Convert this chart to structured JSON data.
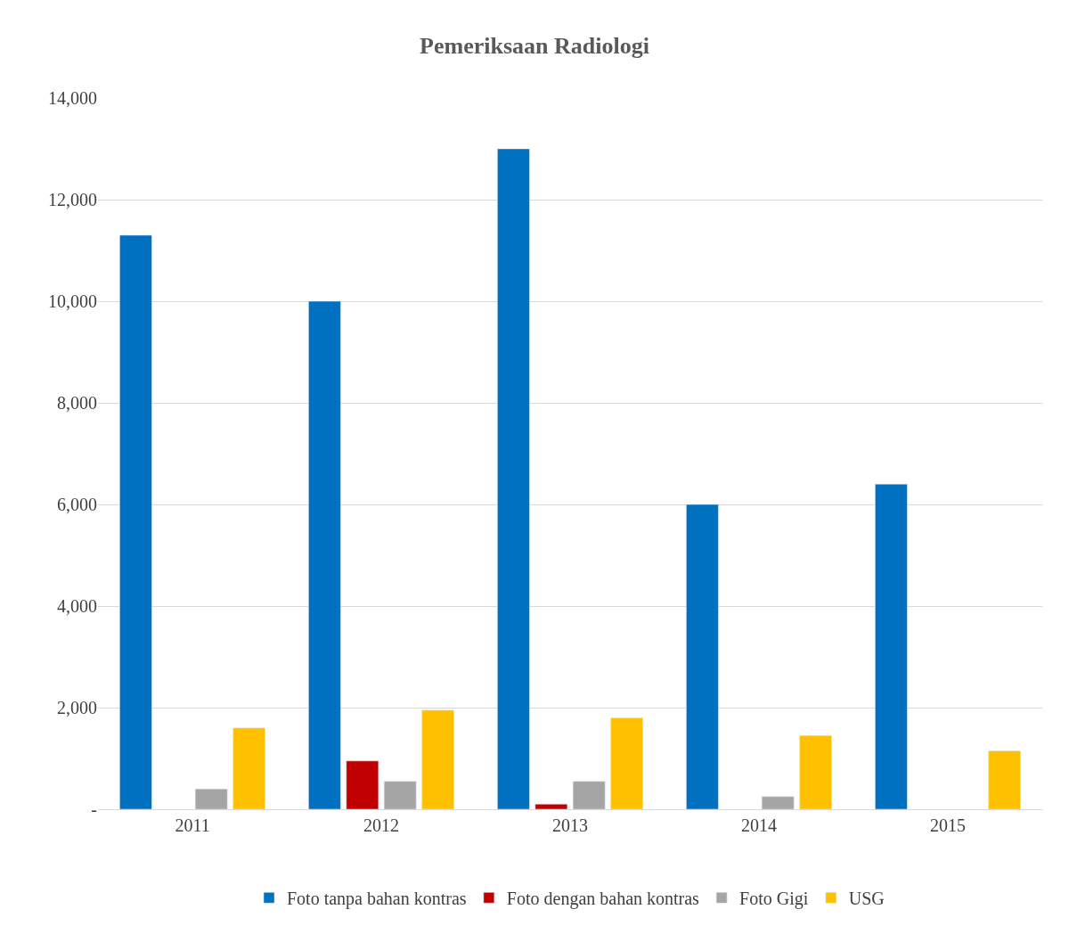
{
  "chart_data": {
    "type": "bar",
    "title": "Pemeriksaan Radiologi",
    "categories": [
      "2011",
      "2012",
      "2013",
      "2014",
      "2015"
    ],
    "series": [
      {
        "name": "Foto tanpa bahan kontras",
        "color": "#0070c0",
        "values": [
          11300,
          10000,
          13000,
          6000,
          6400
        ]
      },
      {
        "name": "Foto dengan bahan kontras",
        "color": "#c00000",
        "values": [
          null,
          950,
          100,
          null,
          null
        ]
      },
      {
        "name": "Foto Gigi",
        "color": "#a5a5a5",
        "values": [
          400,
          550,
          550,
          250,
          null
        ]
      },
      {
        "name": "USG",
        "color": "#ffc000",
        "values": [
          1600,
          1950,
          1800,
          1450,
          1150
        ]
      }
    ],
    "ylim": [
      0,
      14000
    ],
    "yticks": [
      {
        "value": 0,
        "label": "-"
      },
      {
        "value": 2000,
        "label": "2,000"
      },
      {
        "value": 4000,
        "label": "4,000"
      },
      {
        "value": 6000,
        "label": "6,000"
      },
      {
        "value": 8000,
        "label": "8,000"
      },
      {
        "value": 10000,
        "label": "10,000"
      },
      {
        "value": 12000,
        "label": "12,000"
      },
      {
        "value": 14000,
        "label": "14,000"
      }
    ],
    "grid": "y",
    "legend": "bottom"
  }
}
